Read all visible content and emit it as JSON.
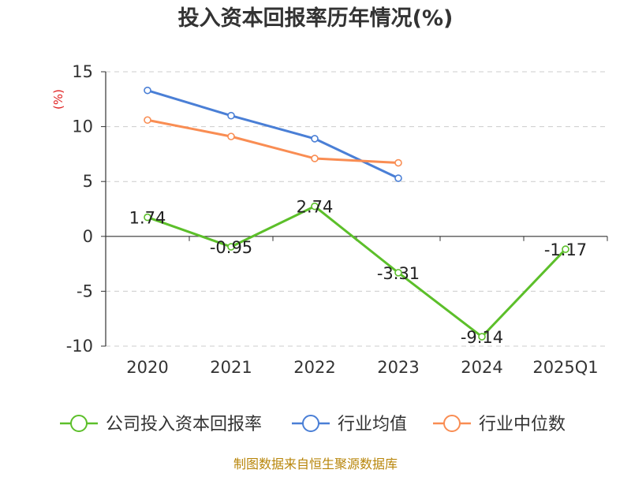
{
  "title": "投入资本回报率历年情况(%)",
  "source_note": "制图数据来自恒生聚源数据库",
  "colors": {
    "company": "#5cbf2a",
    "industry_avg": "#4a7fd6",
    "industry_median": "#f98d53",
    "grid": "#cccccc",
    "axis": "#333333",
    "unit": "#e02020",
    "source": "#b8860b"
  },
  "chart_data": {
    "type": "line",
    "title": "投入资本回报率历年情况(%)",
    "ylabel": "(%)",
    "xlabel": "",
    "categories": [
      "2020",
      "2021",
      "2022",
      "2023",
      "2024",
      "2025Q1"
    ],
    "ylim": [
      -10,
      15
    ],
    "yticks": [
      15,
      10,
      5,
      0,
      -5,
      -10
    ],
    "grid": true,
    "legend_position": "bottom",
    "series": [
      {
        "name": "公司投入资本回报率",
        "color": "#5cbf2a",
        "values": [
          1.74,
          -0.95,
          2.74,
          -3.31,
          -9.14,
          -1.17
        ],
        "labels": [
          "1.74",
          "-0.95",
          "2.74",
          "-3.31",
          "-9.14",
          "-1.17"
        ],
        "show_labels": true
      },
      {
        "name": "行业均值",
        "color": "#4a7fd6",
        "values": [
          13.3,
          11.0,
          8.9,
          5.3,
          null,
          null
        ],
        "show_labels": false
      },
      {
        "name": "行业中位数",
        "color": "#f98d53",
        "values": [
          10.6,
          9.1,
          7.1,
          6.7,
          null,
          null
        ],
        "show_labels": false
      }
    ]
  }
}
